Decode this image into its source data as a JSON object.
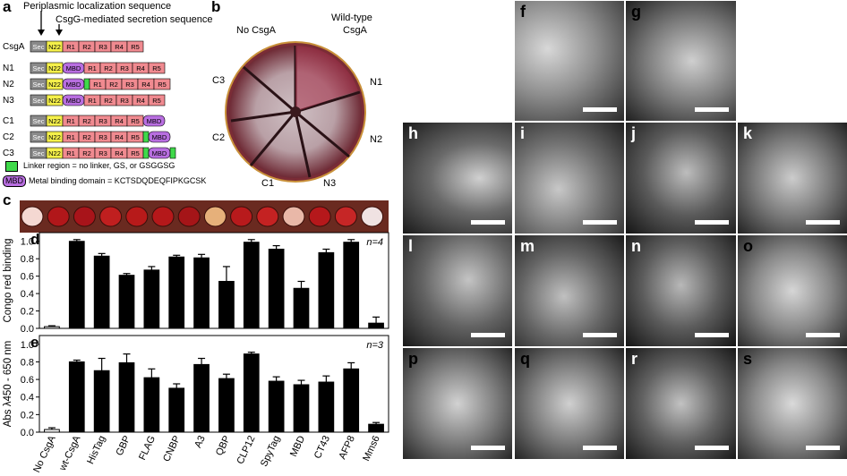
{
  "panel_labels": {
    "a": "a",
    "b": "b",
    "c": "c",
    "d": "d",
    "e": "e",
    "f": "f",
    "g": "g",
    "h": "h",
    "i": "i",
    "j": "j",
    "k": "k",
    "l": "l",
    "m": "m",
    "n": "n",
    "o": "o",
    "p": "p",
    "q": "q",
    "r": "r",
    "s": "s"
  },
  "panel_a": {
    "annotation_top": "Periplasmic localization sequence",
    "annotation_sub": "CsgG-mediated secretion sequence",
    "constructs": [
      {
        "name": "CsgA",
        "parts": [
          "Sec",
          "N22",
          "R1",
          "R2",
          "R3",
          "R4",
          "R5"
        ]
      },
      {
        "name": "N1",
        "parts": [
          "Sec",
          "N22",
          "MBD",
          "R1",
          "R2",
          "R3",
          "R4",
          "R5"
        ]
      },
      {
        "name": "N2",
        "parts": [
          "Sec",
          "N22",
          "MBD",
          "R1",
          "R2",
          "R3",
          "R4",
          "R5"
        ]
      },
      {
        "name": "N3",
        "parts": [
          "Sec",
          "N22",
          "MBD",
          "R1",
          "R2",
          "R3",
          "R4",
          "R5"
        ]
      },
      {
        "name": "C1",
        "parts": [
          "Sec",
          "N22",
          "R1",
          "R2",
          "R3",
          "R4",
          "R5",
          "MBD"
        ]
      },
      {
        "name": "C2",
        "parts": [
          "Sec",
          "N22",
          "R1",
          "R2",
          "R3",
          "R4",
          "R5",
          "MBD"
        ]
      },
      {
        "name": "C3",
        "parts": [
          "Sec",
          "N22",
          "R1",
          "R2",
          "R3",
          "R4",
          "R5",
          "MBD"
        ]
      }
    ],
    "legend_linker": "Linker region = no linker,  GS,  or GSGGSG",
    "legend_mbd_tag": "MBD",
    "legend_mbd": "Metal binding domain = KCTSDQDEQFIPKGCSK"
  },
  "panel_b": {
    "labels": [
      "No CsgA",
      "Wild-type",
      "CsgA",
      "N1",
      "N2",
      "N3",
      "C1",
      "C2",
      "C3"
    ]
  },
  "panel_d": {
    "n_label": "n=4",
    "ylabel": "Congo red binding"
  },
  "panel_e": {
    "n_label": "n=3",
    "ylabel": "Abs λ450 - 650 nm"
  },
  "colors": {
    "sec": "#8a8a8a",
    "n22": "#f5f04a",
    "repeat": "#f08a90",
    "mbd": "#b86ee0",
    "linker": "#3fd94a",
    "bar": "#000000"
  },
  "chart_data": [
    {
      "type": "bar",
      "panel": "d",
      "categories": [
        "No CsgA",
        "wt-CsgA",
        "HisTag",
        "GBP",
        "FLAG",
        "CNBP",
        "A3",
        "QBP",
        "CLP12",
        "SpyTag",
        "MBD",
        "CT43",
        "AFP8",
        "Mms6"
      ],
      "values": [
        0.02,
        1.0,
        0.83,
        0.61,
        0.67,
        0.82,
        0.81,
        0.54,
        0.99,
        0.91,
        0.46,
        0.87,
        0.99,
        0.06
      ],
      "errors": [
        0.01,
        0.02,
        0.03,
        0.02,
        0.04,
        0.02,
        0.04,
        0.17,
        0.03,
        0.04,
        0.08,
        0.04,
        0.03,
        0.07
      ],
      "ylabel": "Congo red binding",
      "yticks": [
        "0.0",
        "0.2",
        "0.4",
        "0.6",
        "0.8",
        "1.0"
      ],
      "ylim": [
        0,
        1.1
      ]
    },
    {
      "type": "bar",
      "panel": "e",
      "categories": [
        "No CsgA",
        "wt-CsgA",
        "HisTag",
        "GBP",
        "FLAG",
        "CNBP",
        "A3",
        "QBP",
        "CLP12",
        "SpyTag",
        "MBD",
        "CT43",
        "AFP8",
        "Mms6"
      ],
      "values": [
        0.03,
        0.8,
        0.7,
        0.79,
        0.62,
        0.5,
        0.77,
        0.61,
        0.89,
        0.58,
        0.54,
        0.57,
        0.72,
        0.09
      ],
      "errors": [
        0.02,
        0.02,
        0.14,
        0.1,
        0.1,
        0.05,
        0.07,
        0.05,
        0.02,
        0.05,
        0.05,
        0.07,
        0.07,
        0.02
      ],
      "ylabel": "Abs λ450 - 650 nm",
      "yticks": [
        "0.0",
        "0.2",
        "0.4",
        "0.6",
        "0.8",
        "1.0"
      ],
      "ylim": [
        0,
        1.1
      ]
    }
  ]
}
